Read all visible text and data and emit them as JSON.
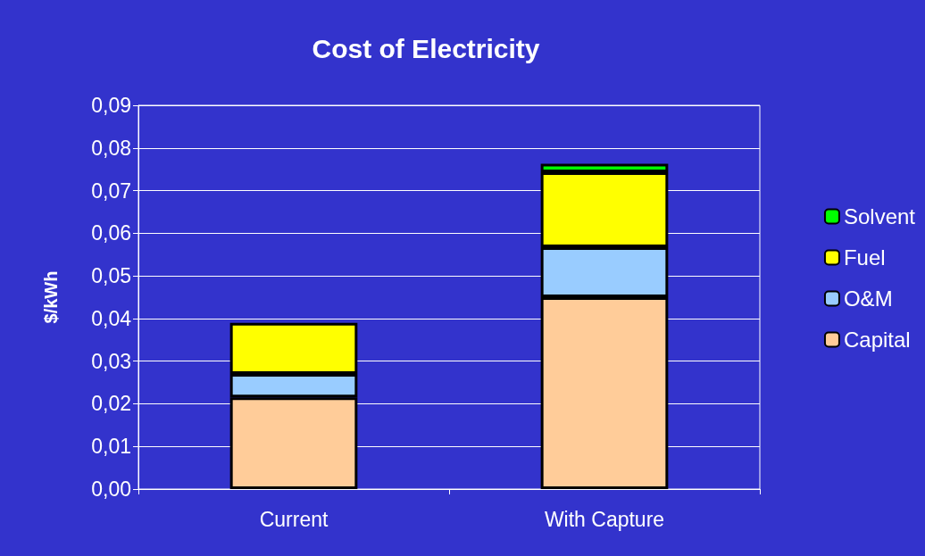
{
  "chart_data": {
    "type": "bar",
    "title": "Cost of Electricity",
    "ylabel": "$/kWh",
    "categories": [
      "Current",
      "With Capture"
    ],
    "stacked": true,
    "legend": "right",
    "grid": "y",
    "ylim": [
      0,
      0.09
    ],
    "yticks": [
      {
        "value": 0,
        "label": "0,00"
      },
      {
        "value": 0.01,
        "label": "0,01"
      },
      {
        "value": 0.02,
        "label": "0,02"
      },
      {
        "value": 0.03,
        "label": "0,03"
      },
      {
        "value": 0.04,
        "label": "0,04"
      },
      {
        "value": 0.05,
        "label": "0,05"
      },
      {
        "value": 0.06,
        "label": "0,06"
      },
      {
        "value": 0.07,
        "label": "0,07"
      },
      {
        "value": 0.08,
        "label": "0,08"
      },
      {
        "value": 0.09,
        "label": "0,09"
      }
    ],
    "series": [
      {
        "name": "Capital",
        "color": "#ffcc99",
        "values": [
          0.0215,
          0.045
        ]
      },
      {
        "name": "O&M",
        "color": "#99ccff",
        "values": [
          0.0055,
          0.0117
        ]
      },
      {
        "name": "Fuel",
        "color": "#ffff00",
        "values": [
          0.012,
          0.0176
        ]
      },
      {
        "name": "Solvent",
        "color": "#00ff00",
        "values": [
          null,
          0.002
        ]
      }
    ]
  }
}
